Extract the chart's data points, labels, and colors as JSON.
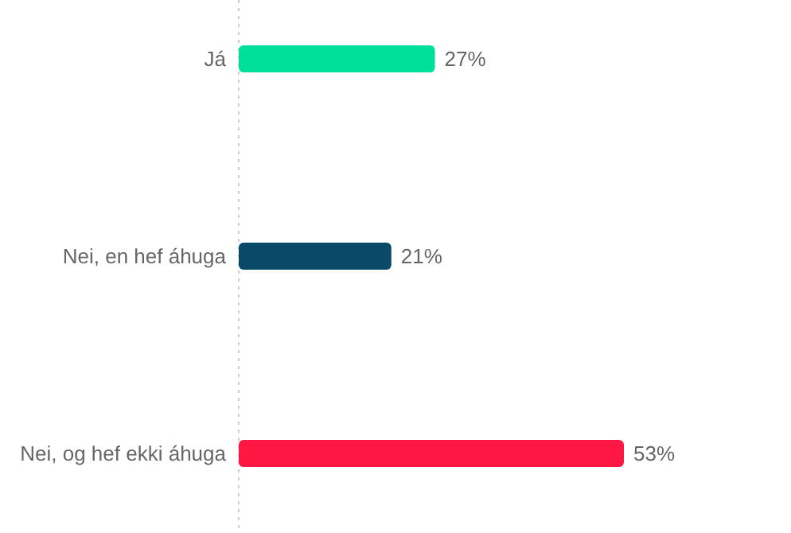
{
  "chart_data": {
    "type": "bar",
    "orientation": "horizontal",
    "categories": [
      "Já",
      "Nei, en hef áhuga",
      "Nei, og hef ekki áhuga"
    ],
    "values": [
      27,
      21,
      53
    ],
    "colors": [
      "#00e09a",
      "#0a4a68",
      "#ff1744"
    ],
    "value_labels": [
      "27%",
      "21%",
      "53%"
    ]
  }
}
